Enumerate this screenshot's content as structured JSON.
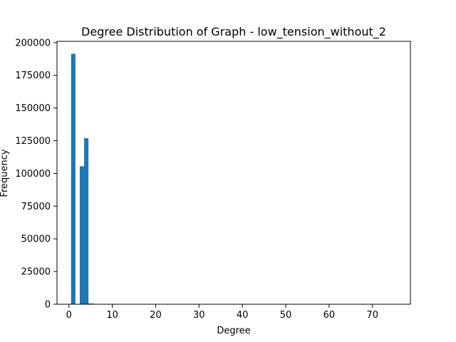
{
  "chart_data": {
    "type": "bar",
    "title": "Degree Distribution of Graph - low_tension_without_2",
    "xlabel": "Degree",
    "ylabel": "Frequency",
    "xlim": [
      -2.75,
      78.75
    ],
    "ylim": [
      0,
      201000
    ],
    "x_ticks": [
      0,
      10,
      20,
      30,
      40,
      50,
      60,
      70
    ],
    "y_ticks": [
      0,
      25000,
      50000,
      75000,
      100000,
      125000,
      150000,
      175000,
      200000
    ],
    "bar_width": 1.0,
    "bar_color": "#1f77b4",
    "grid": false,
    "bins": [
      {
        "x": 1,
        "value": 191500
      },
      {
        "x": 2,
        "value": 0
      },
      {
        "x": 3,
        "value": 105500
      },
      {
        "x": 4,
        "value": 127000
      },
      {
        "x": 5,
        "value": 600
      },
      {
        "x": 6,
        "value": 300
      }
    ]
  }
}
